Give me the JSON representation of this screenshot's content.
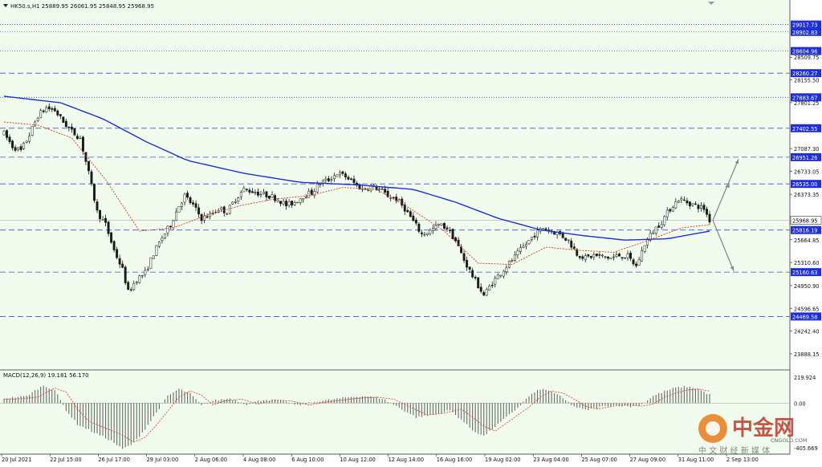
{
  "window": {
    "symbol_line": "HK50.s,H1  25889.95 26061.95 25848.95 25968.95"
  },
  "macd": {
    "label": "MACD(12,26,9) 19.181 56.170",
    "axis_ticks": [
      "219.924",
      "0.00",
      "-405.669"
    ]
  },
  "watermark": {
    "brand": "中金网",
    "tagline": "中 文 财 经 新 媒 体",
    "domain": "CNGOLD.COM",
    "colors": {
      "logo": "#e87a1a",
      "text": "#c0392b"
    }
  },
  "colors": {
    "background": "#f1fcef",
    "candle": "#1a1a1a",
    "ma_slow": "#1f2fd6",
    "ma_fast": "#d63b1f",
    "hline": "#3a55d0",
    "price_tag": "#1f2fd6",
    "current_tag": "#ffffff",
    "projection": "#8a8a8a"
  },
  "chart_data": {
    "type": "candlestick",
    "title": "HK50.s,H1",
    "ohlc_last": {
      "open": 25889.95,
      "high": 26061.95,
      "low": 25848.95,
      "close": 25968.95
    },
    "ylim": [
      23650,
      29250
    ],
    "y_ticks": [
      "29017.73",
      "28902.83",
      "28604.96",
      "28509.75",
      "28260.27",
      "28155.50",
      "27883.67",
      "27801.25",
      "27402.55",
      "27087.30",
      "26951.26",
      "26733.05",
      "26535.00",
      "26373.35",
      "25968.95",
      "25816.19",
      "25664.85",
      "25310.60",
      "25160.63",
      "24950.90",
      "24596.65",
      "24469.58",
      "24242.40",
      "23888.15"
    ],
    "x_ticks": [
      "20 Jul 2021",
      "22 Jul 15:00",
      "26 Jul 17:00",
      "29 Jul 03:00",
      "2 Aug 06:00",
      "4 Aug 08:00",
      "6 Aug 10:00",
      "10 Aug 12:00",
      "12 Aug 14:00",
      "16 Aug 16:00",
      "19 Aug 02:00",
      "23 Aug 04:00",
      "25 Aug 07:00",
      "27 Aug 09:00",
      "31 Aug 11:00",
      "2 Sep 13:00"
    ],
    "horizontal_levels": [
      {
        "value": 29017.73,
        "style": "dotted"
      },
      {
        "value": 28902.83,
        "style": "dotted"
      },
      {
        "value": 28604.96,
        "style": "dotted"
      },
      {
        "value": 28260.27,
        "style": "dashed"
      },
      {
        "value": 27883.67,
        "style": "dotted"
      },
      {
        "value": 27402.55,
        "style": "dashed"
      },
      {
        "value": 26951.26,
        "style": "dashed"
      },
      {
        "value": 26535.0,
        "style": "dashed"
      },
      {
        "value": 25816.19,
        "style": "dashed"
      },
      {
        "value": 25160.63,
        "style": "dashed"
      },
      {
        "value": 24469.58,
        "style": "dashed"
      }
    ],
    "current_price": 25968.95,
    "close_path": [
      [
        0,
        27320
      ],
      [
        3,
        27120
      ],
      [
        6,
        27050
      ],
      [
        9,
        27300
      ],
      [
        12,
        27600
      ],
      [
        15,
        27720
      ],
      [
        18,
        27680
      ],
      [
        21,
        27500
      ],
      [
        24,
        27350
      ],
      [
        27,
        27250
      ],
      [
        30,
        26700
      ],
      [
        33,
        26100
      ],
      [
        36,
        25900
      ],
      [
        39,
        25500
      ],
      [
        42,
        25200
      ],
      [
        44,
        24850
      ],
      [
        47,
        25050
      ],
      [
        50,
        25150
      ],
      [
        53,
        25450
      ],
      [
        56,
        25700
      ],
      [
        59,
        25900
      ],
      [
        62,
        26200
      ],
      [
        64,
        26350
      ],
      [
        67,
        26200
      ],
      [
        70,
        26000
      ],
      [
        73,
        26050
      ],
      [
        76,
        26150
      ],
      [
        79,
        26100
      ],
      [
        82,
        26300
      ],
      [
        85,
        26450
      ],
      [
        88,
        26420
      ],
      [
        91,
        26380
      ],
      [
        94,
        26350
      ],
      [
        97,
        26300
      ],
      [
        100,
        26200
      ],
      [
        103,
        26250
      ],
      [
        106,
        26350
      ],
      [
        109,
        26400
      ],
      [
        112,
        26550
      ],
      [
        115,
        26600
      ],
      [
        118,
        26700
      ],
      [
        121,
        26650
      ],
      [
        124,
        26550
      ],
      [
        127,
        26450
      ],
      [
        130,
        26500
      ],
      [
        133,
        26450
      ],
      [
        136,
        26350
      ],
      [
        139,
        26300
      ],
      [
        142,
        26150
      ],
      [
        145,
        25950
      ],
      [
        148,
        25750
      ],
      [
        151,
        25800
      ],
      [
        154,
        25900
      ],
      [
        157,
        25850
      ],
      [
        160,
        25650
      ],
      [
        163,
        25350
      ],
      [
        166,
        25100
      ],
      [
        168,
        24950
      ],
      [
        170,
        24800
      ],
      [
        173,
        25000
      ],
      [
        176,
        25150
      ],
      [
        179,
        25300
      ],
      [
        182,
        25450
      ],
      [
        185,
        25600
      ],
      [
        188,
        25750
      ],
      [
        191,
        25850
      ],
      [
        194,
        25800
      ],
      [
        197,
        25750
      ],
      [
        200,
        25650
      ],
      [
        203,
        25450
      ],
      [
        206,
        25380
      ],
      [
        209,
        25420
      ],
      [
        212,
        25400
      ],
      [
        215,
        25380
      ],
      [
        218,
        25420
      ],
      [
        221,
        25400
      ],
      [
        224,
        25250
      ],
      [
        227,
        25600
      ],
      [
        230,
        25800
      ],
      [
        233,
        25950
      ],
      [
        236,
        26150
      ],
      [
        239,
        26300
      ],
      [
        242,
        26250
      ],
      [
        245,
        26200
      ],
      [
        248,
        26150
      ],
      [
        250,
        25969
      ]
    ],
    "ma_slow": [
      [
        0,
        27900
      ],
      [
        20,
        27800
      ],
      [
        35,
        27550
      ],
      [
        50,
        27200
      ],
      [
        65,
        26900
      ],
      [
        85,
        26700
      ],
      [
        105,
        26560
      ],
      [
        125,
        26520
      ],
      [
        145,
        26450
      ],
      [
        160,
        26250
      ],
      [
        175,
        26000
      ],
      [
        190,
        25820
      ],
      [
        205,
        25730
      ],
      [
        220,
        25660
      ],
      [
        235,
        25680
      ],
      [
        250,
        25800
      ]
    ],
    "ma_fast": [
      [
        0,
        27500
      ],
      [
        12,
        27450
      ],
      [
        24,
        27250
      ],
      [
        36,
        26600
      ],
      [
        48,
        25800
      ],
      [
        60,
        25850
      ],
      [
        72,
        26050
      ],
      [
        84,
        26200
      ],
      [
        96,
        26300
      ],
      [
        108,
        26350
      ],
      [
        120,
        26480
      ],
      [
        132,
        26450
      ],
      [
        144,
        26150
      ],
      [
        156,
        25800
      ],
      [
        168,
        25300
      ],
      [
        180,
        25280
      ],
      [
        192,
        25550
      ],
      [
        204,
        25500
      ],
      [
        216,
        25470
      ],
      [
        228,
        25650
      ],
      [
        240,
        25850
      ],
      [
        250,
        25900
      ]
    ],
    "projection_arrows": [
      {
        "from": [
          250,
          25969
        ],
        "to": [
          259,
          26600
        ]
      },
      {
        "to_label": "up_end",
        "from": [
          259,
          26600
        ],
        "to": [
          262,
          27000
        ]
      },
      {
        "from": [
          250,
          25969
        ],
        "to": [
          262,
          25200
        ]
      }
    ],
    "macd_panel": {
      "ylim": [
        -405.669,
        219.924
      ],
      "profile": [
        [
          0,
          40
        ],
        [
          8,
          60
        ],
        [
          14,
          150
        ],
        [
          18,
          110
        ],
        [
          22,
          -60
        ],
        [
          26,
          -180
        ],
        [
          32,
          -250
        ],
        [
          38,
          -320
        ],
        [
          42,
          -390
        ],
        [
          46,
          -340
        ],
        [
          50,
          -220
        ],
        [
          54,
          -80
        ],
        [
          58,
          60
        ],
        [
          62,
          120
        ],
        [
          66,
          80
        ],
        [
          70,
          -20
        ],
        [
          74,
          20
        ],
        [
          80,
          40
        ],
        [
          86,
          -10
        ],
        [
          92,
          30
        ],
        [
          98,
          20
        ],
        [
          104,
          -20
        ],
        [
          110,
          10
        ],
        [
          116,
          30
        ],
        [
          122,
          50
        ],
        [
          128,
          60
        ],
        [
          134,
          40
        ],
        [
          140,
          -40
        ],
        [
          146,
          -120
        ],
        [
          152,
          -100
        ],
        [
          158,
          -60
        ],
        [
          162,
          -140
        ],
        [
          166,
          -230
        ],
        [
          170,
          -280
        ],
        [
          174,
          -200
        ],
        [
          178,
          -120
        ],
        [
          182,
          -40
        ],
        [
          186,
          60
        ],
        [
          190,
          120
        ],
        [
          194,
          100
        ],
        [
          198,
          40
        ],
        [
          202,
          -30
        ],
        [
          206,
          -60
        ],
        [
          210,
          -40
        ],
        [
          214,
          -20
        ],
        [
          218,
          -20
        ],
        [
          222,
          -30
        ],
        [
          226,
          -10
        ],
        [
          230,
          60
        ],
        [
          234,
          100
        ],
        [
          238,
          130
        ],
        [
          242,
          140
        ],
        [
          246,
          120
        ],
        [
          250,
          70
        ]
      ]
    }
  }
}
